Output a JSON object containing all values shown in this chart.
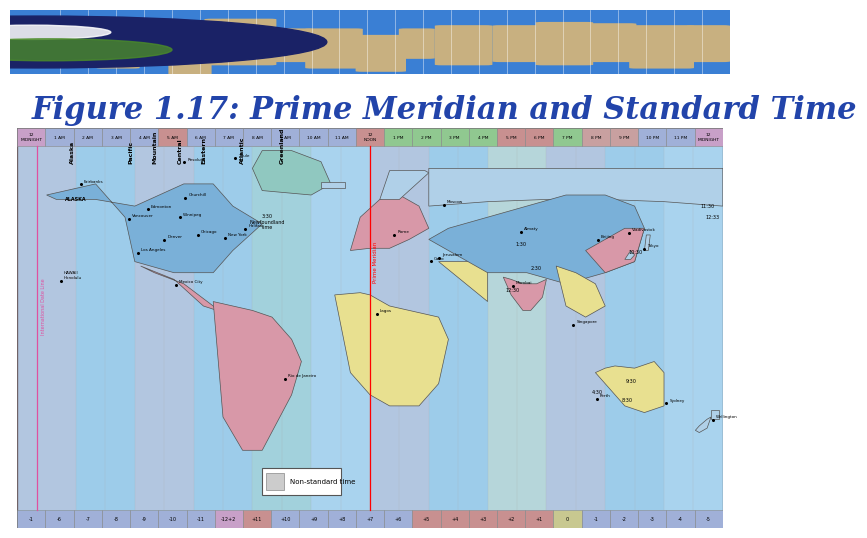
{
  "title": "Figure 1.17: Prime Meridian and Standard Time",
  "title_color": "#2244aa",
  "title_fontsize": 22,
  "bg_color": "#ffffff",
  "header_bg": "#3a7fd4",
  "map_bg": "#a8d4f0",
  "time_labels": [
    "12\nMIDNIGHT",
    "1 AM",
    "2 AM",
    "3 AM",
    "4 AM",
    "5 AM",
    "6 AM",
    "7 AM",
    "8 AM",
    "9 AM",
    "10 AM",
    "11 AM",
    "12\nNOON",
    "1 PM",
    "2 PM",
    "3 PM",
    "4 PM",
    "5 PM",
    "6 PM",
    "7 PM",
    "8 PM",
    "9 PM",
    "10 PM",
    "11 PM",
    "12\nMIDNIGHT"
  ],
  "top_bar_colors": [
    "#c8a0c8",
    "#a0b0d8",
    "#a0b0d8",
    "#a0b0d8",
    "#a0b0d8",
    "#c89090",
    "#a0b0d8",
    "#a0b0d8",
    "#a0b0d8",
    "#a0b0d8",
    "#a0b0d8",
    "#a0b0d8",
    "#c89090",
    "#90c890",
    "#90c890",
    "#90c890",
    "#90c890",
    "#c89090",
    "#c89090",
    "#90c890",
    "#c8a0a0",
    "#c8a0a0",
    "#a0b0d8",
    "#a0b0d8",
    "#c8a0c8"
  ],
  "bottom_labels": [
    "-1",
    "-6",
    "-7",
    "-8",
    "-9",
    "-10",
    "-11",
    "-12+2",
    "+11",
    "+10",
    "+9",
    "+8",
    "+7",
    "+6",
    "+5",
    "+4",
    "+3",
    "+2",
    "+1",
    "0",
    "-1",
    "-2",
    "-3",
    "-4",
    "-5"
  ],
  "bot_bar_colors": [
    "#a0b0d8",
    "#a0b0d8",
    "#a0b0d8",
    "#a0b0d8",
    "#a0b0d8",
    "#a0b0d8",
    "#a0b0d8",
    "#c8a0c8",
    "#c89090",
    "#a0b0d8",
    "#a0b0d8",
    "#a0b0d8",
    "#a0b0d8",
    "#a0b0d8",
    "#c89090",
    "#c89090",
    "#c89090",
    "#c89090",
    "#c89090",
    "#c8c890",
    "#a0b0d8",
    "#a0b0d8",
    "#a0b0d8",
    "#a0b0d8",
    "#a0b0d8"
  ],
  "land_color_header": "#c8b080",
  "globe_dark": "#1a2266",
  "globe_spot": "#ffffff",
  "globe_land": "#4a8a2a",
  "c_blue": "#7ab0d8",
  "c_pink": "#d898a8",
  "c_yellow": "#e8e090",
  "c_green": "#90c898",
  "c_teal": "#90c8c0",
  "c_lt_blue": "#b0d0e8",
  "c_lt_pink": "#e8b8c8",
  "prime_meridian_color": "red",
  "idl_color": "#e050a0",
  "tz_labels": [
    [
      "Alaska",
      -152
    ],
    [
      "Pacific",
      -122
    ],
    [
      "Mountain",
      -110
    ],
    [
      "Central",
      -97
    ],
    [
      "Eastern",
      -85
    ],
    [
      "Atlantic",
      -65
    ],
    [
      "Greenland",
      -45
    ]
  ],
  "cities": [
    [
      "Fairbanks",
      -147.7,
      64.8
    ],
    [
      "Vancouver",
      -123.1,
      49.2
    ],
    [
      "Los Angeles",
      -118.2,
      34.0
    ],
    [
      "HAWAII\nHonolulu",
      -157.8,
      21.3
    ],
    [
      "Edmonton",
      -113.5,
      53.5
    ],
    [
      "Winnipeg",
      -97.1,
      49.9
    ],
    [
      "Chicago",
      -87.6,
      41.9
    ],
    [
      "Denver",
      -104.9,
      39.7
    ],
    [
      "New York",
      -74.0,
      40.7
    ],
    [
      "Halifax",
      -63.6,
      44.6
    ],
    [
      "Churchill",
      -94.2,
      58.8
    ],
    [
      "Mexico City",
      -99.1,
      19.4
    ],
    [
      "Rio de Janeiro",
      -43.2,
      -22.9
    ],
    [
      "Thule",
      -68.8,
      76.5
    ],
    [
      "Resolute",
      -94.8,
      74.7
    ],
    [
      "Moscow",
      37.6,
      55.7
    ],
    [
      "Rome",
      12.5,
      41.9
    ],
    [
      "Lagos",
      3.4,
      6.4
    ],
    [
      "Cairo",
      31.2,
      30.1
    ],
    [
      "Jerusalem",
      35.2,
      31.8
    ],
    [
      "Mumbai",
      72.8,
      19.1
    ],
    [
      "Singapore",
      103.8,
      1.3
    ],
    [
      "Beijing",
      116.4,
      39.9
    ],
    [
      "Tokyo",
      139.7,
      35.7
    ],
    [
      "Perth",
      115.9,
      -31.9
    ],
    [
      "Sydney",
      151.2,
      -33.9
    ],
    [
      "Wellington",
      174.8,
      -41.3
    ],
    [
      "Vladivostok",
      132.0,
      43.1
    ],
    [
      "Almaty",
      76.9,
      43.3
    ]
  ],
  "half_times": [
    [
      "3:30\nNewfoundland\ntime",
      -52.5,
      48.0
    ],
    [
      "9:30",
      133.5,
      -23.7
    ],
    [
      "8:30",
      131.0,
      -32.5
    ],
    [
      "1:30",
      76.9,
      38.0
    ],
    [
      "2:30",
      85.0,
      27.0
    ],
    [
      "4:30",
      115.9,
      -29.0
    ],
    [
      "10:30",
      135.5,
      34.5
    ],
    [
      "12:30",
      72.8,
      17.0
    ],
    [
      "11:30",
      172.0,
      55.0
    ],
    [
      "12:33",
      175.0,
      50.0
    ]
  ]
}
